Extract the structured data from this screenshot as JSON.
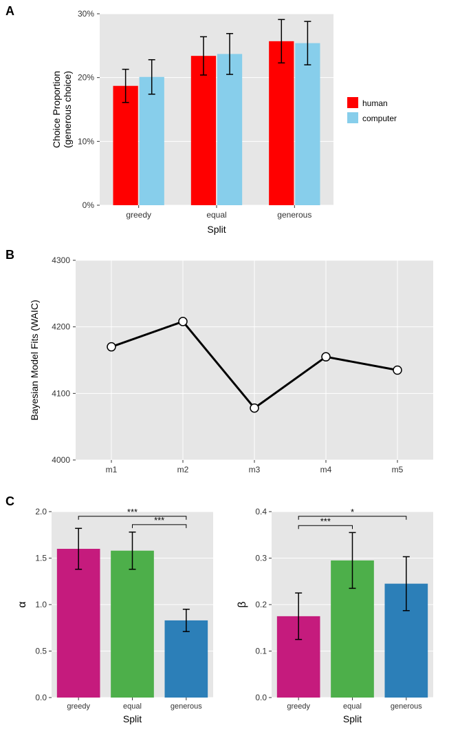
{
  "panelA": {
    "label": "A",
    "type": "bar",
    "categories": [
      "greedy",
      "equal",
      "generous"
    ],
    "series": [
      {
        "name": "human",
        "color": "#ff0000",
        "values": [
          18.7,
          23.4,
          25.7
        ],
        "err_low": [
          2.6,
          3.0,
          3.4
        ],
        "err_high": [
          2.6,
          3.0,
          3.4
        ]
      },
      {
        "name": "computer",
        "color": "#87ceeb",
        "values": [
          20.1,
          23.7,
          25.4
        ],
        "err_low": [
          2.7,
          3.2,
          3.4
        ],
        "err_high": [
          2.7,
          3.2,
          3.4
        ]
      }
    ],
    "ylabel": "Choice Proportion\n(generous choice)",
    "xlabel": "Split",
    "ylim": [
      0,
      30
    ],
    "yticks": [
      0,
      10,
      20,
      30
    ],
    "ytick_labels": [
      "0%",
      "10%",
      "20%",
      "30%"
    ],
    "plot_bg": "#e6e6e6",
    "grid_color": "#ffffff",
    "bar_width": 0.4,
    "legend": {
      "title": null,
      "items": [
        "human",
        "computer"
      ]
    }
  },
  "panelB": {
    "label": "B",
    "type": "line",
    "categories": [
      "m1",
      "m2",
      "m3",
      "m4",
      "m5"
    ],
    "values": [
      4170,
      4208,
      4078,
      4155,
      4135
    ],
    "ylabel": "Bayesian Model Fits (WAIC)",
    "ylim": [
      4000,
      4300
    ],
    "yticks": [
      4000,
      4100,
      4200,
      4300
    ],
    "plot_bg": "#e6e6e6",
    "grid_color": "#ffffff",
    "line_color": "#000000",
    "line_width": 3,
    "marker_fill": "#ffffff",
    "marker_stroke": "#000000",
    "marker_size": 6
  },
  "panelC": {
    "label": "C",
    "left": {
      "type": "bar",
      "categories": [
        "greedy",
        "equal",
        "generous"
      ],
      "values": [
        1.6,
        1.58,
        0.83
      ],
      "err_low": [
        0.22,
        0.2,
        0.12
      ],
      "err_high": [
        0.22,
        0.2,
        0.12
      ],
      "colors": [
        "#c51b7d",
        "#4daf4a",
        "#2c7fb8"
      ],
      "ylabel": "α",
      "xlabel": "Split",
      "ylim": [
        0,
        2.0
      ],
      "yticks": [
        0.0,
        0.5,
        1.0,
        1.5,
        2.0
      ],
      "plot_bg": "#e6e6e6",
      "grid_color": "#ffffff",
      "sig": [
        {
          "from": 0,
          "to": 2,
          "label": "***",
          "y": 1.95
        },
        {
          "from": 1,
          "to": 2,
          "label": "***",
          "y": 1.86
        }
      ]
    },
    "right": {
      "type": "bar",
      "categories": [
        "greedy",
        "equal",
        "generous"
      ],
      "values": [
        0.175,
        0.295,
        0.245
      ],
      "err_low": [
        0.05,
        0.06,
        0.058
      ],
      "err_high": [
        0.05,
        0.06,
        0.058
      ],
      "colors": [
        "#c51b7d",
        "#4daf4a",
        "#2c7fb8"
      ],
      "ylabel": "β",
      "xlabel": "Split",
      "ylim": [
        0,
        0.4
      ],
      "yticks": [
        0.0,
        0.1,
        0.2,
        0.3,
        0.4
      ],
      "plot_bg": "#e6e6e6",
      "grid_color": "#ffffff",
      "sig": [
        {
          "from": 0,
          "to": 2,
          "label": "*",
          "y": 0.39
        },
        {
          "from": 0,
          "to": 1,
          "label": "***",
          "y": 0.37
        }
      ]
    }
  },
  "axis_fontsize": 14,
  "tick_fontsize": 12,
  "label_fontsize": 14
}
